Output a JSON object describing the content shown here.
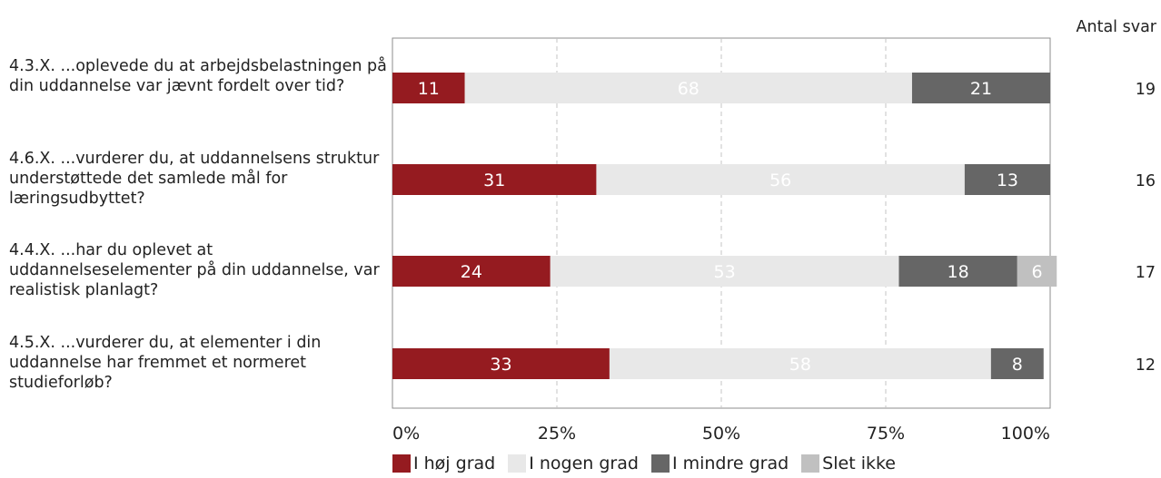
{
  "chart_data": {
    "type": "bar",
    "orientation": "horizontal",
    "stacked": true,
    "categories": [
      "4.3.X. ...oplevede du at arbejdsbelastningen på din uddannelse var jævnt fordelt over tid?",
      "4.6.X. ...vurderer du, at uddannelsens struktur understøttede det samlede mål for læringsudbyttet?",
      "4.4.X. ...har du oplevet at uddannelseselementer på din uddannelse, var realistisk planlagt?",
      "4.5.X. ...vurderer du, at elementer i din uddannelse har fremmet et normeret studieforløb?"
    ],
    "series": [
      {
        "name": "I høj grad",
        "color": "#951b20",
        "values": [
          11,
          31,
          24,
          33
        ]
      },
      {
        "name": "I nogen grad",
        "color": "#e8e8e8",
        "values": [
          68,
          56,
          53,
          58
        ]
      },
      {
        "name": "I mindre grad",
        "color": "#666666",
        "values": [
          21,
          13,
          18,
          8
        ]
      },
      {
        "name": "Slet ikke",
        "color": "#c0c0c0",
        "values": [
          0,
          0,
          6,
          0
        ]
      }
    ],
    "xlim": [
      0,
      100
    ],
    "xticks": [
      "0%",
      "25%",
      "50%",
      "75%",
      "100%"
    ],
    "grid": "vertical dashed",
    "legend_position": "bottom",
    "responses_header": "Antal svar",
    "responses": [
      19,
      16,
      17,
      12
    ]
  }
}
